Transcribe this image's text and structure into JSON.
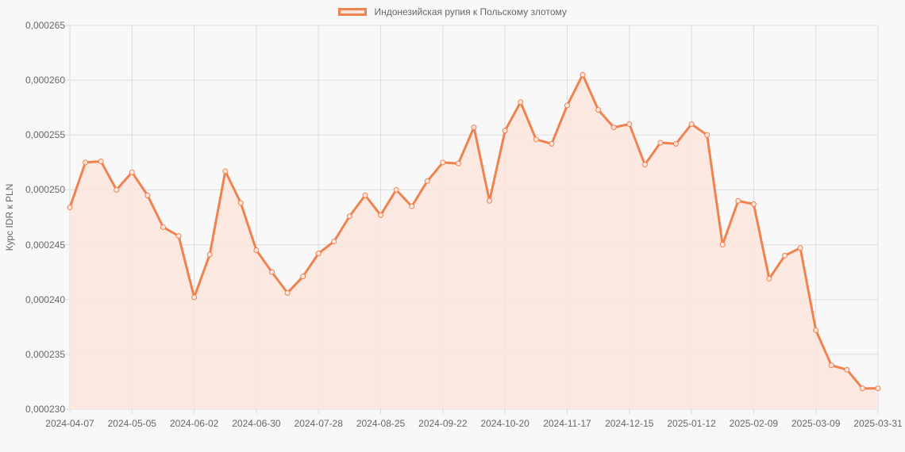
{
  "legend": {
    "label": "Индонезийская рупия к Польскому злотому",
    "line_color": "#f0824f",
    "fill_color": "#fbe5dd"
  },
  "axes": {
    "y_title": "Курс IDR к PLN",
    "y_ticks": [
      "0,000265",
      "0,000260",
      "0,000255",
      "0,000250",
      "0,000245",
      "0,000240",
      "0,000235",
      "0,000230"
    ],
    "x_ticks": [
      "2024-04-07",
      "2024-05-05",
      "2024-06-02",
      "2024-06-30",
      "2024-07-28",
      "2024-08-25",
      "2024-09-22",
      "2024-10-20",
      "2024-11-17",
      "2024-12-15",
      "2025-01-12",
      "2025-02-09",
      "2025-03-09",
      "2025-03-31"
    ]
  },
  "chart_data": {
    "type": "area",
    "title": "",
    "xlabel": "",
    "ylabel": "Курс IDR к PLN",
    "ylim": [
      0.00023,
      0.000265
    ],
    "grid": true,
    "legend_position": "top",
    "x_tick_labels": [
      "2024-04-07",
      "2024-05-05",
      "2024-06-02",
      "2024-06-30",
      "2024-07-28",
      "2024-08-25",
      "2024-09-22",
      "2024-10-20",
      "2024-11-17",
      "2024-12-15",
      "2025-01-12",
      "2025-02-09",
      "2025-03-09",
      "2025-03-31"
    ],
    "x": [
      "2024-04-07",
      "2024-04-14",
      "2024-04-21",
      "2024-04-28",
      "2024-05-05",
      "2024-05-12",
      "2024-05-19",
      "2024-05-26",
      "2024-06-02",
      "2024-06-09",
      "2024-06-16",
      "2024-06-23",
      "2024-06-30",
      "2024-07-07",
      "2024-07-14",
      "2024-07-21",
      "2024-07-28",
      "2024-08-04",
      "2024-08-11",
      "2024-08-18",
      "2024-08-25",
      "2024-09-01",
      "2024-09-08",
      "2024-09-15",
      "2024-09-22",
      "2024-09-29",
      "2024-10-06",
      "2024-10-13",
      "2024-10-20",
      "2024-10-27",
      "2024-11-03",
      "2024-11-10",
      "2024-11-17",
      "2024-11-24",
      "2024-12-01",
      "2024-12-08",
      "2024-12-15",
      "2024-12-22",
      "2024-12-29",
      "2025-01-05",
      "2025-01-12",
      "2025-01-19",
      "2025-01-26",
      "2025-02-02",
      "2025-02-09",
      "2025-02-16",
      "2025-02-23",
      "2025-03-02",
      "2025-03-09",
      "2025-03-16",
      "2025-03-23",
      "2025-03-30",
      "2025-03-31"
    ],
    "series": [
      {
        "name": "Индонезийская рупия к Польскому злотому",
        "color": "#f0824f",
        "values": [
          0.0002484,
          0.0002525,
          0.0002526,
          0.00025,
          0.0002516,
          0.0002495,
          0.0002466,
          0.0002458,
          0.0002402,
          0.0002441,
          0.0002517,
          0.0002488,
          0.0002445,
          0.0002425,
          0.0002406,
          0.0002421,
          0.0002442,
          0.0002453,
          0.0002476,
          0.0002495,
          0.0002477,
          0.00025,
          0.0002485,
          0.0002508,
          0.0002525,
          0.0002524,
          0.0002557,
          0.000249,
          0.0002554,
          0.000258,
          0.0002546,
          0.0002542,
          0.0002577,
          0.0002605,
          0.0002573,
          0.0002557,
          0.000256,
          0.0002523,
          0.0002543,
          0.0002542,
          0.000256,
          0.000255,
          0.000245,
          0.000249,
          0.0002487,
          0.0002419,
          0.000244,
          0.0002447,
          0.0002372,
          0.000234,
          0.0002336,
          0.0002319,
          0.0002319
        ]
      }
    ]
  }
}
